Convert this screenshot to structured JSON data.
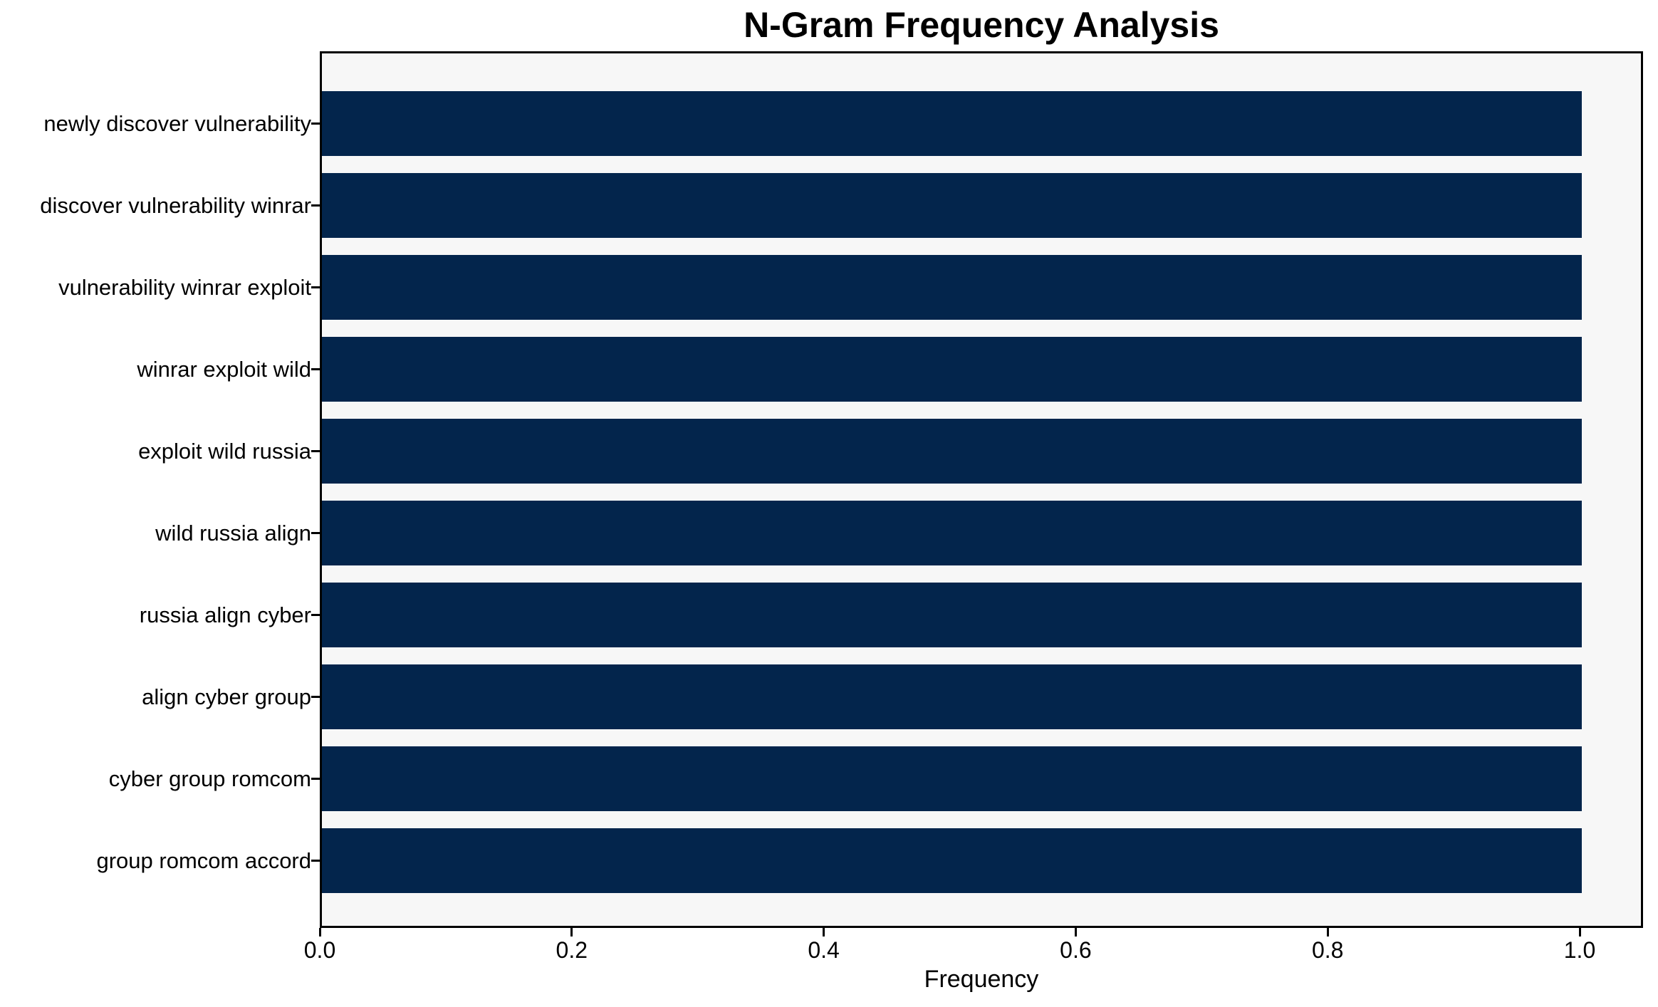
{
  "chart_data": {
    "type": "bar",
    "orientation": "horizontal",
    "title": "N-Gram Frequency Analysis",
    "xlabel": "Frequency",
    "ylabel": "",
    "categories": [
      "newly discover vulnerability",
      "discover vulnerability winrar",
      "vulnerability winrar exploit",
      "winrar exploit wild",
      "exploit wild russia",
      "wild russia align",
      "russia align cyber",
      "align cyber group",
      "cyber group romcom",
      "group romcom accord"
    ],
    "values": [
      1.0,
      1.0,
      1.0,
      1.0,
      1.0,
      1.0,
      1.0,
      1.0,
      1.0,
      1.0
    ],
    "xlim": [
      0,
      1.05
    ],
    "xticks": [
      0.0,
      0.2,
      0.4,
      0.6,
      0.8,
      1.0
    ],
    "xtick_labels": [
      "0.0",
      "0.2",
      "0.4",
      "0.6",
      "0.8",
      "1.0"
    ],
    "grid": false,
    "legend": null,
    "colors": {
      "bar": "#03254c",
      "plot_background": "#f7f7f7",
      "figure_background": "#ffffff",
      "spine": "#000000",
      "text": "#000000"
    }
  }
}
